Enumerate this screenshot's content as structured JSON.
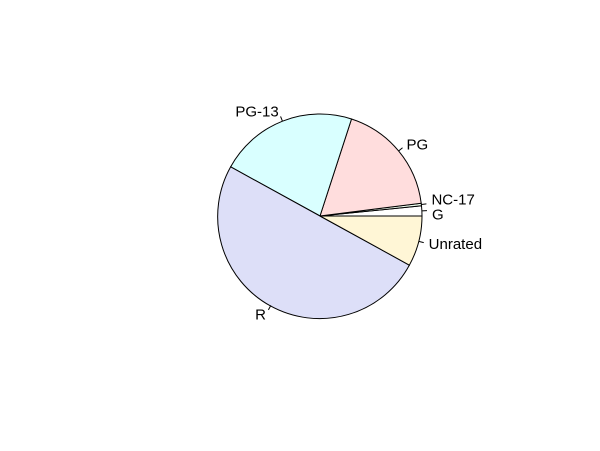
{
  "chart_data": {
    "type": "pie",
    "start_angle_deg": 0,
    "direction": "counterclockwise",
    "grid": false,
    "legend": "none",
    "slices": [
      {
        "label": "G",
        "value": 1.6,
        "color": "#ffffff"
      },
      {
        "label": "NC-17",
        "value": 0.4,
        "color": "#f0fff0"
      },
      {
        "label": "PG",
        "value": 18.0,
        "color": "#ffdddd"
      },
      {
        "label": "PG-13",
        "value": 22.0,
        "color": "#d9ffff"
      },
      {
        "label": "R",
        "value": 50.0,
        "color": "#dddff8"
      },
      {
        "label": "Unrated",
        "value": 8.0,
        "color": "#fff6d6"
      }
    ]
  }
}
